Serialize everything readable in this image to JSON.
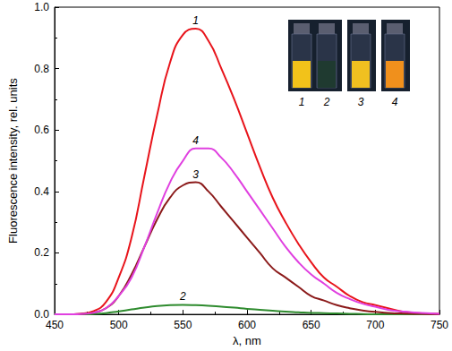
{
  "chart_data": {
    "type": "line",
    "x_label": "λ, nm",
    "y_label": "Fluorescence intensity, rel. units",
    "x": [
      450,
      460,
      470,
      480,
      490,
      500,
      510,
      520,
      530,
      540,
      550,
      560,
      570,
      580,
      590,
      600,
      610,
      620,
      630,
      640,
      650,
      660,
      670,
      680,
      690,
      700,
      710,
      720,
      730,
      740,
      750
    ],
    "series": [
      {
        "name": "1",
        "color": "#e8141b",
        "values": [
          0,
          0,
          0.002,
          0.01,
          0.04,
          0.12,
          0.25,
          0.45,
          0.65,
          0.82,
          0.91,
          0.93,
          0.89,
          0.8,
          0.7,
          0.59,
          0.48,
          0.38,
          0.3,
          0.23,
          0.17,
          0.12,
          0.09,
          0.06,
          0.04,
          0.03,
          0.02,
          0.01,
          0.005,
          0.003,
          0.002
        ]
      },
      {
        "name": "2",
        "color": "#2e8b2e",
        "values": [
          0,
          0,
          0,
          0.001,
          0.004,
          0.01,
          0.016,
          0.022,
          0.027,
          0.03,
          0.031,
          0.03,
          0.028,
          0.025,
          0.022,
          0.018,
          0.015,
          0.012,
          0.009,
          0.007,
          0.005,
          0.004,
          0.003,
          0.002,
          0.001,
          0,
          0,
          0,
          0,
          0,
          0
        ]
      },
      {
        "name": "3",
        "color": "#8b1a1a",
        "values": [
          0,
          0,
          0.001,
          0.005,
          0.02,
          0.06,
          0.13,
          0.22,
          0.31,
          0.38,
          0.42,
          0.43,
          0.4,
          0.35,
          0.3,
          0.25,
          0.2,
          0.15,
          0.12,
          0.09,
          0.06,
          0.045,
          0.03,
          0.02,
          0.013,
          0.008,
          0.005,
          0.003,
          0.002,
          0.001,
          0
        ]
      },
      {
        "name": "4",
        "color": "#e040e0",
        "values": [
          0,
          0,
          0.001,
          0.005,
          0.02,
          0.06,
          0.12,
          0.22,
          0.33,
          0.43,
          0.5,
          0.54,
          0.54,
          0.51,
          0.46,
          0.4,
          0.34,
          0.28,
          0.22,
          0.17,
          0.13,
          0.1,
          0.07,
          0.05,
          0.035,
          0.025,
          0.015,
          0.01,
          0.006,
          0.004,
          0.002
        ]
      }
    ],
    "xlim": [
      450,
      750
    ],
    "xticks": [
      450,
      500,
      550,
      600,
      650,
      700,
      750
    ],
    "ylim": [
      0,
      1
    ],
    "yticks": [
      {
        "value": 0,
        "label": "0.0"
      },
      0.2,
      0.4,
      0.6,
      0.8,
      {
        "value": 1,
        "label": "1.0"
      }
    ],
    "grid": false
  }
}
